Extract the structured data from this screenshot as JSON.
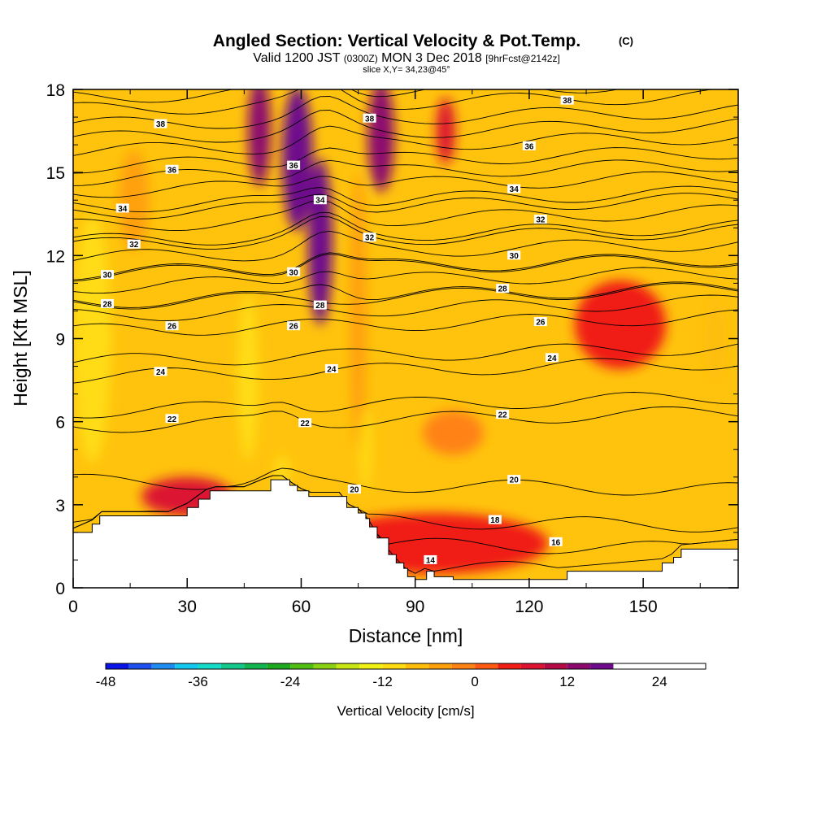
{
  "chart_data": {
    "type": "heatmap",
    "title": "Angled Section: Vertical Velocity & Pot.Temp.",
    "title_unit": "(C)",
    "subtitle_parts": [
      "Valid 1200 JST ",
      "(0300Z)",
      " MON 3 Dec 2018 ",
      "[9hrFcst@2142z]"
    ],
    "slice_label": "slice X,Y= 34,23@45°",
    "xlabel": "Distance [nm]",
    "ylabel": "Height [Kft MSL]",
    "xlim": [
      0,
      175
    ],
    "ylim": [
      0,
      18
    ],
    "x_ticks": [
      "0",
      "30",
      "60",
      "90",
      "120",
      "150"
    ],
    "y_ticks": [
      "0",
      "3",
      "6",
      "9",
      "12",
      "15",
      "18"
    ],
    "colorbar": {
      "label": "Vertical Velocity [cm/s]",
      "range": [
        -48,
        30
      ],
      "step": 3,
      "ticks": [
        "-48",
        "-36",
        "-24",
        "-12",
        "0",
        "12",
        "24"
      ],
      "colors": [
        "#0a14e6",
        "#1e50f0",
        "#1e8cf0",
        "#14c8f0",
        "#14dcc8",
        "#14c88c",
        "#14b450",
        "#1eaa1e",
        "#50be14",
        "#8cd214",
        "#c8e614",
        "#f0f014",
        "#ffdc14",
        "#ffbe0a",
        "#ffa00a",
        "#ff8214",
        "#ff5a14",
        "#f01e14",
        "#dc1432",
        "#b40a46",
        "#8c0a6e",
        "#6e0a8c"
      ]
    },
    "terrain_profile": {
      "x": [
        0,
        5,
        7,
        10,
        25,
        30,
        33,
        36,
        45,
        52,
        55,
        57,
        59,
        62,
        70,
        72,
        75,
        77,
        78,
        80,
        83,
        85,
        87,
        88,
        90,
        93,
        95,
        100,
        130,
        155,
        158,
        160,
        175
      ],
      "y": [
        2.0,
        2.3,
        2.6,
        2.6,
        2.6,
        2.9,
        3.2,
        3.5,
        3.5,
        3.9,
        3.9,
        3.7,
        3.5,
        3.3,
        3.3,
        2.9,
        2.7,
        2.5,
        2.2,
        1.8,
        1.2,
        0.9,
        0.7,
        0.4,
        0.3,
        0.6,
        0.4,
        0.3,
        0.6,
        0.9,
        1.1,
        1.4,
        1.6
      ]
    },
    "pot_temp_contours": [
      {
        "value": 14,
        "label": "14"
      },
      {
        "value": 16,
        "label": "16"
      },
      {
        "value": 18,
        "label": "18"
      },
      {
        "value": 20,
        "label": "20"
      },
      {
        "value": 22,
        "label": "22"
      },
      {
        "value": 24,
        "label": "24"
      },
      {
        "value": 26,
        "label": "26"
      },
      {
        "value": 28,
        "label": "28"
      },
      {
        "value": 30,
        "label": "30"
      },
      {
        "value": 32,
        "label": "32"
      },
      {
        "value": 34,
        "label": "34"
      },
      {
        "value": 36,
        "label": "36"
      },
      {
        "value": 38,
        "label": "38"
      }
    ],
    "contour_labels": [
      {
        "text": "14",
        "x": 94,
        "y": 1.0
      },
      {
        "text": "16",
        "x": 127,
        "y": 1.65
      },
      {
        "text": "18",
        "x": 111,
        "y": 2.45
      },
      {
        "text": "20",
        "x": 74,
        "y": 3.55
      },
      {
        "text": "20",
        "x": 116,
        "y": 3.9
      },
      {
        "text": "22",
        "x": 26,
        "y": 6.1
      },
      {
        "text": "22",
        "x": 61,
        "y": 5.95
      },
      {
        "text": "22",
        "x": 113,
        "y": 6.25
      },
      {
        "text": "24",
        "x": 23,
        "y": 7.8
      },
      {
        "text": "24",
        "x": 68,
        "y": 7.9
      },
      {
        "text": "24",
        "x": 126,
        "y": 8.3
      },
      {
        "text": "26",
        "x": 26,
        "y": 9.45
      },
      {
        "text": "26",
        "x": 58,
        "y": 9.45
      },
      {
        "text": "26",
        "x": 123,
        "y": 9.6
      },
      {
        "text": "28",
        "x": 9,
        "y": 10.25
      },
      {
        "text": "28",
        "x": 65,
        "y": 10.2
      },
      {
        "text": "28",
        "x": 113,
        "y": 10.8
      },
      {
        "text": "30",
        "x": 9,
        "y": 11.3
      },
      {
        "text": "30",
        "x": 58,
        "y": 11.4
      },
      {
        "text": "30",
        "x": 116,
        "y": 12.0
      },
      {
        "text": "32",
        "x": 16,
        "y": 12.4
      },
      {
        "text": "32",
        "x": 78,
        "y": 12.65
      },
      {
        "text": "32",
        "x": 123,
        "y": 13.3
      },
      {
        "text": "34",
        "x": 13,
        "y": 13.7
      },
      {
        "text": "34",
        "x": 65,
        "y": 14.0
      },
      {
        "text": "34",
        "x": 116,
        "y": 14.4
      },
      {
        "text": "36",
        "x": 26,
        "y": 15.1
      },
      {
        "text": "36",
        "x": 58,
        "y": 15.25
      },
      {
        "text": "36",
        "x": 120,
        "y": 15.95
      },
      {
        "text": "38",
        "x": 23,
        "y": 16.75
      },
      {
        "text": "38",
        "x": 78,
        "y": 16.95
      },
      {
        "text": "38",
        "x": 130,
        "y": 17.6
      }
    ],
    "velocity_features": [
      {
        "kind": "updraft",
        "x": 59,
        "y": 15.5,
        "rx": 4.0,
        "ry": 2.6,
        "value": 18
      },
      {
        "kind": "updraft",
        "x": 65,
        "y": 12.5,
        "rx": 3.2,
        "ry": 3.0,
        "value": 15
      },
      {
        "kind": "updraft",
        "x": 49,
        "y": 16.5,
        "rx": 3.0,
        "ry": 2.0,
        "value": 12
      },
      {
        "kind": "updraft",
        "x": 81,
        "y": 16.3,
        "rx": 3.5,
        "ry": 2.0,
        "value": 12
      },
      {
        "kind": "updraft",
        "x": 98,
        "y": 16.5,
        "rx": 2.5,
        "ry": 1.2,
        "value": 6
      },
      {
        "kind": "updraft",
        "x": 144,
        "y": 9.5,
        "rx": 12.0,
        "ry": 1.6,
        "value": 3
      },
      {
        "kind": "updraft",
        "x": 95,
        "y": 1.6,
        "rx": 30.0,
        "ry": 1.1,
        "value": 4
      },
      {
        "kind": "updraft",
        "x": 30,
        "y": 3.3,
        "rx": 12.0,
        "ry": 0.7,
        "value": 6
      },
      {
        "kind": "downdraft",
        "x": 5,
        "y": 9.0,
        "rx": 3.2,
        "ry": 2.8,
        "value": -20
      },
      {
        "kind": "downdraft",
        "x": 5,
        "y": 9.0,
        "rx": 5.0,
        "ry": 4.5,
        "value": -10
      },
      {
        "kind": "downdraft",
        "x": 46,
        "y": 8.0,
        "rx": 1.8,
        "ry": 2.0,
        "value": -18
      },
      {
        "kind": "downdraft",
        "x": 46,
        "y": 7.6,
        "rx": 2.8,
        "ry": 3.0,
        "value": -10
      },
      {
        "kind": "downdraft",
        "x": 75,
        "y": 10.0,
        "rx": 2.2,
        "ry": 5.0,
        "value": -6
      },
      {
        "kind": "downdraft",
        "x": 77,
        "y": 5.0,
        "rx": 1.5,
        "ry": 1.5,
        "value": -12
      },
      {
        "kind": "downdraft",
        "x": 169,
        "y": 9.0,
        "rx": 3.0,
        "ry": 1.5,
        "value": -8
      },
      {
        "kind": "downdraft",
        "x": 16,
        "y": 14.0,
        "rx": 4.0,
        "ry": 1.8,
        "value": -5
      },
      {
        "kind": "downdraft",
        "x": 100,
        "y": 5.6,
        "rx": 8.0,
        "ry": 0.8,
        "value": -3
      },
      {
        "kind": "downdraft",
        "x": 55,
        "y": 4.2,
        "rx": 2.0,
        "ry": 0.6,
        "value": -12
      }
    ]
  }
}
